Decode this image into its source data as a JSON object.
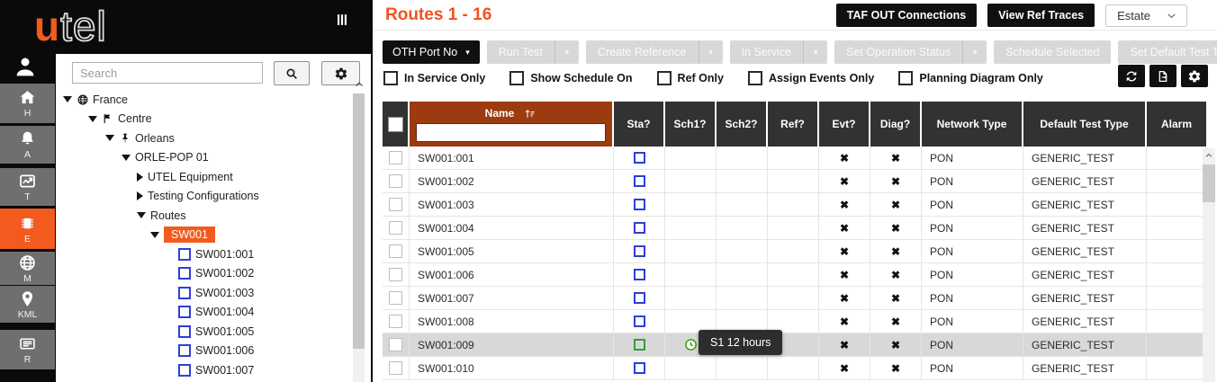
{
  "brand": {
    "logo_u": "u",
    "logo_tel": "tel"
  },
  "colors": {
    "accent_orange": "#f25a1e",
    "title_orange": "#f4511e",
    "name_header_rust": "#9c3a10",
    "table_header_dark": "#323232",
    "sta_blue": "#2e3fd8",
    "sta_green": "#35a035",
    "clock_green": "#3ba005",
    "row_highlight": "#d8d8d8"
  },
  "sidebar": {
    "account_icon": "person-icon",
    "grip_icon": "grip-icon",
    "rail": [
      {
        "label": "H",
        "icon": "home-icon",
        "active": false
      },
      {
        "label": "A",
        "icon": "bell-icon",
        "active": false
      },
      {
        "label": "T",
        "icon": "trend-icon",
        "active": false
      },
      {
        "label": "E",
        "icon": "chip-icon",
        "active": true
      },
      {
        "label": "M",
        "icon": "globe-icon",
        "active": false
      },
      {
        "label": "KML",
        "icon": "map-pin-icon",
        "active": false
      },
      {
        "label": "R",
        "icon": "report-icon",
        "active": false
      }
    ],
    "search": {
      "placeholder": "Search"
    },
    "tree": [
      {
        "level": 0,
        "expander": "expanded",
        "icon": "globe-icon",
        "label": "France",
        "selected": false
      },
      {
        "level": 1,
        "expander": "expanded",
        "icon": "flag-icon",
        "label": "Centre",
        "selected": false
      },
      {
        "level": 2,
        "expander": "expanded",
        "icon": "pushpin-icon",
        "label": "Orleans",
        "selected": false
      },
      {
        "level": 3,
        "expander": "expanded",
        "icon": "",
        "label": "ORLE-POP 01",
        "selected": false
      },
      {
        "level": 4,
        "expander": "collapsed",
        "icon": "",
        "label": "UTEL Equipment",
        "selected": false
      },
      {
        "level": 4,
        "expander": "collapsed",
        "icon": "",
        "label": "Testing Configurations",
        "selected": false
      },
      {
        "level": 4,
        "expander": "expanded",
        "icon": "",
        "label": "Routes",
        "selected": false
      },
      {
        "level": 5,
        "expander": "expanded",
        "icon": "",
        "label": "SW001",
        "selected": true
      },
      {
        "level": 6,
        "expander": "",
        "icon": "checkbox",
        "label": "SW001:001",
        "selected": false
      },
      {
        "level": 6,
        "expander": "",
        "icon": "checkbox",
        "label": "SW001:002",
        "selected": false
      },
      {
        "level": 6,
        "expander": "",
        "icon": "checkbox",
        "label": "SW001:003",
        "selected": false
      },
      {
        "level": 6,
        "expander": "",
        "icon": "checkbox",
        "label": "SW001:004",
        "selected": false
      },
      {
        "level": 6,
        "expander": "",
        "icon": "checkbox",
        "label": "SW001:005",
        "selected": false
      },
      {
        "level": 6,
        "expander": "",
        "icon": "checkbox",
        "label": "SW001:006",
        "selected": false
      },
      {
        "level": 6,
        "expander": "",
        "icon": "checkbox",
        "label": "SW001:007",
        "selected": false
      }
    ]
  },
  "header": {
    "title": "Routes 1 - 16",
    "taf_button": "TAF OUT Connections",
    "ref_button": "View Ref Traces",
    "estate_select": "Estate"
  },
  "toolbar": {
    "port_button": {
      "label": "OTH Port No",
      "caret": "▾"
    },
    "actions": [
      {
        "label": "Run Test",
        "split": true,
        "disabled": true
      },
      {
        "label": "Create Reference",
        "split": true,
        "disabled": true
      },
      {
        "label": "In Service",
        "split": true,
        "disabled": true
      },
      {
        "label": "Set Operation Status",
        "split": true,
        "disabled": true
      },
      {
        "label": "Schedule Selected",
        "split": false,
        "caret": false,
        "disabled": true
      },
      {
        "label": "Set Default Test Type",
        "split": false,
        "caret": true,
        "disabled": true
      }
    ],
    "icon_buttons": [
      "refresh-icon",
      "export-icon",
      "gear-icon"
    ]
  },
  "filters": [
    {
      "label": "In Service Only",
      "checked": false
    },
    {
      "label": "Show Schedule On",
      "checked": false
    },
    {
      "label": "Ref Only",
      "checked": false
    },
    {
      "label": "Assign Events Only",
      "checked": false
    },
    {
      "label": "Planning Diagram Only",
      "checked": false
    }
  ],
  "table": {
    "columns": [
      "",
      "Name",
      "Sta?",
      "Sch1?",
      "Sch2?",
      "Ref?",
      "Evt?",
      "Diag?",
      "Network Type",
      "Default Test Type",
      "Alarm"
    ],
    "name_filter_value": "",
    "x_mark": "✖",
    "rows": [
      {
        "name": "SW001:001",
        "sta": "blue",
        "sch1": "",
        "sch2": "",
        "ref": "",
        "evt": "x",
        "diag": "x",
        "network_type": "PON",
        "default_test_type": "GENERIC_TEST",
        "alarm": "",
        "highlighted": false
      },
      {
        "name": "SW001:002",
        "sta": "blue",
        "sch1": "",
        "sch2": "",
        "ref": "",
        "evt": "x",
        "diag": "x",
        "network_type": "PON",
        "default_test_type": "GENERIC_TEST",
        "alarm": "",
        "highlighted": false
      },
      {
        "name": "SW001:003",
        "sta": "blue",
        "sch1": "",
        "sch2": "",
        "ref": "",
        "evt": "x",
        "diag": "x",
        "network_type": "PON",
        "default_test_type": "GENERIC_TEST",
        "alarm": "",
        "highlighted": false
      },
      {
        "name": "SW001:004",
        "sta": "blue",
        "sch1": "",
        "sch2": "",
        "ref": "",
        "evt": "x",
        "diag": "x",
        "network_type": "PON",
        "default_test_type": "GENERIC_TEST",
        "alarm": "",
        "highlighted": false
      },
      {
        "name": "SW001:005",
        "sta": "blue",
        "sch1": "",
        "sch2": "",
        "ref": "",
        "evt": "x",
        "diag": "x",
        "network_type": "PON",
        "default_test_type": "GENERIC_TEST",
        "alarm": "",
        "highlighted": false
      },
      {
        "name": "SW001:006",
        "sta": "blue",
        "sch1": "",
        "sch2": "",
        "ref": "",
        "evt": "x",
        "diag": "x",
        "network_type": "PON",
        "default_test_type": "GENERIC_TEST",
        "alarm": "",
        "highlighted": false
      },
      {
        "name": "SW001:007",
        "sta": "blue",
        "sch1": "",
        "sch2": "",
        "ref": "",
        "evt": "x",
        "diag": "x",
        "network_type": "PON",
        "default_test_type": "GENERIC_TEST",
        "alarm": "",
        "highlighted": false
      },
      {
        "name": "SW001:008",
        "sta": "blue",
        "sch1": "",
        "sch2": "",
        "ref": "",
        "evt": "x",
        "diag": "x",
        "network_type": "PON",
        "default_test_type": "GENERIC_TEST",
        "alarm": "",
        "highlighted": false
      },
      {
        "name": "SW001:009",
        "sta": "green",
        "sch1": "clock",
        "sch2": "",
        "ref": "",
        "evt": "x",
        "diag": "x",
        "network_type": "PON",
        "default_test_type": "GENERIC_TEST",
        "alarm": "",
        "highlighted": true
      },
      {
        "name": "SW001:010",
        "sta": "blue",
        "sch1": "",
        "sch2": "",
        "ref": "",
        "evt": "x",
        "diag": "x",
        "network_type": "PON",
        "default_test_type": "GENERIC_TEST",
        "alarm": "",
        "highlighted": false
      }
    ]
  },
  "tooltip": {
    "text": "S1 12 hours"
  }
}
